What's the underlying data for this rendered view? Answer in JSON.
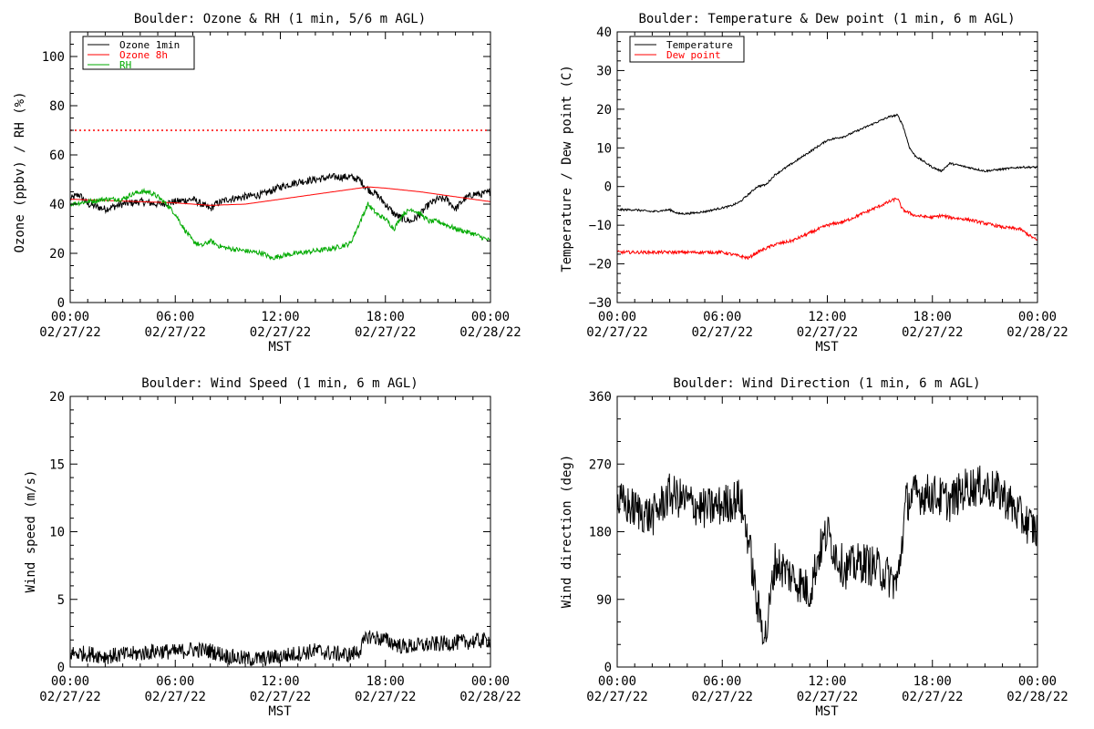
{
  "colors": {
    "black": "#000000",
    "red": "#ff0000",
    "green": "#00aa00"
  },
  "chart_data": [
    {
      "id": "ozone",
      "type": "line",
      "title": "Boulder: Ozone & RH (1 min, 5/6 m AGL)",
      "xlabel": "MST",
      "ylabel": "Ozone (ppbv) / RH (%)",
      "xlim": [
        0,
        24
      ],
      "ylim": [
        0,
        110
      ],
      "yticks": [
        0,
        20,
        40,
        60,
        80,
        100
      ],
      "ytick_labels": [
        "0",
        "20",
        "40",
        "60",
        "80",
        "100"
      ],
      "xticks": [
        0,
        6,
        12,
        18,
        24
      ],
      "xtick_times": [
        "00:00",
        "06:00",
        "12:00",
        "18:00",
        "00:00"
      ],
      "xtick_dates": [
        "02/27/22",
        "02/27/22",
        "02/27/22",
        "02/27/22",
        "02/28/22"
      ],
      "legend": [
        "Ozone 1min",
        "Ozone 8h",
        "RH"
      ],
      "threshold_line": {
        "y": 70,
        "color": "#ff0000",
        "style": "dotted"
      },
      "series": [
        {
          "name": "Ozone 1min",
          "color": "#000000",
          "noise": 1.5,
          "x": [
            0,
            0.5,
            1,
            2,
            3,
            4,
            5,
            6,
            7,
            7.5,
            8,
            8.3,
            9,
            10,
            11,
            12,
            13,
            14,
            15,
            16,
            16.5,
            17,
            17.5,
            18,
            18.5,
            19,
            19.5,
            20,
            20.5,
            21,
            21.5,
            22,
            22.5,
            23,
            23.5,
            24
          ],
          "y": [
            42,
            44,
            40,
            38,
            40,
            41,
            40,
            41,
            42,
            40,
            38,
            40,
            42,
            43,
            44,
            47,
            49,
            50,
            51,
            51,
            50,
            46,
            44,
            40,
            36,
            34,
            33,
            36,
            40,
            42,
            42,
            38,
            42,
            44,
            44,
            45
          ]
        },
        {
          "name": "Ozone 8h",
          "color": "#ff0000",
          "noise": 0,
          "x": [
            0,
            2,
            4,
            6,
            8,
            10,
            12,
            14,
            16,
            17,
            18,
            20,
            22,
            24
          ],
          "y": [
            42,
            41.5,
            41,
            40.5,
            39.5,
            40,
            42,
            44,
            46,
            47,
            46.5,
            45,
            43,
            41
          ]
        },
        {
          "name": "RH",
          "color": "#00aa00",
          "noise": 1.0,
          "x": [
            0,
            1,
            2,
            3,
            3.5,
            4,
            4.5,
            5,
            5.5,
            6,
            6.5,
            7,
            7.5,
            8,
            8.5,
            9,
            10,
            11,
            11.5,
            12,
            13,
            14,
            15,
            16,
            16.5,
            17,
            17.5,
            18,
            18.5,
            19,
            19.5,
            20,
            20.5,
            21,
            22,
            23,
            24
          ],
          "y": [
            40,
            41,
            42,
            42,
            44,
            45,
            45,
            43,
            40,
            36,
            30,
            25,
            23,
            25,
            23,
            22,
            21,
            20,
            18,
            19,
            20,
            21,
            22,
            24,
            32,
            40,
            36,
            34,
            30,
            36,
            38,
            36,
            33,
            33,
            30,
            28,
            25
          ]
        }
      ]
    },
    {
      "id": "temp",
      "type": "line",
      "title": "Boulder: Temperature & Dew point (1 min, 6 m AGL)",
      "xlabel": "MST",
      "ylabel": "Temperature / Dew point (C)",
      "xlim": [
        0,
        24
      ],
      "ylim": [
        -30,
        40
      ],
      "yticks": [
        -30,
        -20,
        -10,
        0,
        10,
        20,
        30,
        40
      ],
      "ytick_labels": [
        "−30",
        "−20",
        "−10",
        "0",
        "10",
        "20",
        "30",
        "40"
      ],
      "xticks": [
        0,
        6,
        12,
        18,
        24
      ],
      "xtick_times": [
        "00:00",
        "06:00",
        "12:00",
        "18:00",
        "00:00"
      ],
      "xtick_dates": [
        "02/27/22",
        "02/27/22",
        "02/27/22",
        "02/27/22",
        "02/28/22"
      ],
      "legend": [
        "Temperature",
        "Dew point"
      ],
      "series": [
        {
          "name": "Temperature",
          "color": "#000000",
          "noise": 0.25,
          "x": [
            0,
            1,
            2,
            3,
            3.5,
            4,
            5,
            6,
            6.5,
            7,
            7.5,
            8,
            8.5,
            9,
            10,
            11,
            12,
            13,
            14,
            15,
            15.5,
            16,
            16.3,
            16.7,
            17,
            18,
            18.5,
            19,
            20,
            21,
            22,
            23,
            24
          ],
          "y": [
            -6,
            -6,
            -6.5,
            -6,
            -7,
            -7,
            -6.5,
            -5.5,
            -5,
            -4,
            -2,
            0,
            0.5,
            3,
            6,
            9,
            12,
            13,
            15,
            17,
            18,
            18.5,
            16,
            10,
            8,
            5,
            4,
            6,
            5,
            4,
            4.5,
            5,
            5
          ]
        },
        {
          "name": "Dew point",
          "color": "#ff0000",
          "noise": 0.4,
          "x": [
            0,
            2,
            4,
            6,
            7,
            7.5,
            8,
            9,
            10,
            11,
            12,
            13,
            14,
            15,
            15.5,
            16,
            16.3,
            17,
            18,
            18.5,
            19,
            20,
            21,
            22,
            23,
            24
          ],
          "y": [
            -17,
            -17,
            -17,
            -17,
            -18,
            -18.5,
            -17,
            -15,
            -14,
            -12,
            -10,
            -9,
            -7,
            -5,
            -4,
            -3,
            -6,
            -7.5,
            -8,
            -7.5,
            -8,
            -8.5,
            -9.5,
            -10.5,
            -11,
            -14
          ]
        }
      ]
    },
    {
      "id": "wspd",
      "type": "line",
      "title": "Boulder: Wind Speed (1 min, 6 m AGL)",
      "xlabel": "MST",
      "ylabel": "Wind speed (m/s)",
      "xlim": [
        0,
        24
      ],
      "ylim": [
        0,
        20
      ],
      "yticks": [
        0,
        5,
        10,
        15,
        20
      ],
      "ytick_labels": [
        "0",
        "5",
        "10",
        "15",
        "20"
      ],
      "xticks": [
        0,
        6,
        12,
        18,
        24
      ],
      "xtick_times": [
        "00:00",
        "06:00",
        "12:00",
        "18:00",
        "00:00"
      ],
      "xtick_dates": [
        "02/27/22",
        "02/27/22",
        "02/27/22",
        "02/27/22",
        "02/28/22"
      ],
      "series": [
        {
          "name": "Wind speed",
          "color": "#000000",
          "noise": 0.6,
          "x": [
            0,
            1,
            2,
            3,
            4,
            5,
            6,
            7,
            8,
            9,
            10,
            11,
            12,
            13,
            14,
            15,
            16,
            16.5,
            17,
            18,
            19,
            20,
            21,
            22,
            23,
            24
          ],
          "y": [
            1.0,
            1.0,
            0.8,
            0.9,
            1.0,
            1.2,
            1.1,
            1.3,
            1.2,
            0.8,
            0.6,
            0.6,
            0.8,
            1.0,
            1.2,
            1.0,
            0.9,
            1.2,
            2.3,
            2.0,
            1.5,
            1.6,
            1.7,
            1.8,
            1.9,
            2.0
          ]
        }
      ]
    },
    {
      "id": "wdir",
      "type": "line",
      "title": "Boulder: Wind Direction (1 min, 6 m AGL)",
      "xlabel": "MST",
      "ylabel": "Wind direction (deg)",
      "xlim": [
        0,
        24
      ],
      "ylim": [
        0,
        360
      ],
      "yticks": [
        0,
        90,
        180,
        270,
        360
      ],
      "ytick_labels": [
        "0",
        "90",
        "180",
        "270",
        "360"
      ],
      "xticks": [
        0,
        6,
        12,
        18,
        24
      ],
      "xtick_times": [
        "00:00",
        "06:00",
        "12:00",
        "18:00",
        "00:00"
      ],
      "xtick_dates": [
        "02/27/22",
        "02/27/22",
        "02/27/22",
        "02/27/22",
        "02/28/22"
      ],
      "series": [
        {
          "name": "Wind direction",
          "color": "#000000",
          "noise": 28,
          "x": [
            0,
            1,
            2,
            3,
            4,
            5,
            6,
            7,
            7.5,
            8,
            8.5,
            9,
            10,
            11,
            11.5,
            12,
            12.5,
            13,
            14,
            15,
            16,
            16.5,
            17,
            18,
            19,
            20,
            21,
            22,
            23,
            24
          ],
          "y": [
            220,
            210,
            200,
            230,
            220,
            210,
            215,
            225,
            170,
            80,
            40,
            140,
            120,
            100,
            150,
            180,
            150,
            130,
            140,
            130,
            110,
            220,
            230,
            230,
            220,
            240,
            240,
            230,
            200,
            180
          ]
        }
      ]
    }
  ]
}
